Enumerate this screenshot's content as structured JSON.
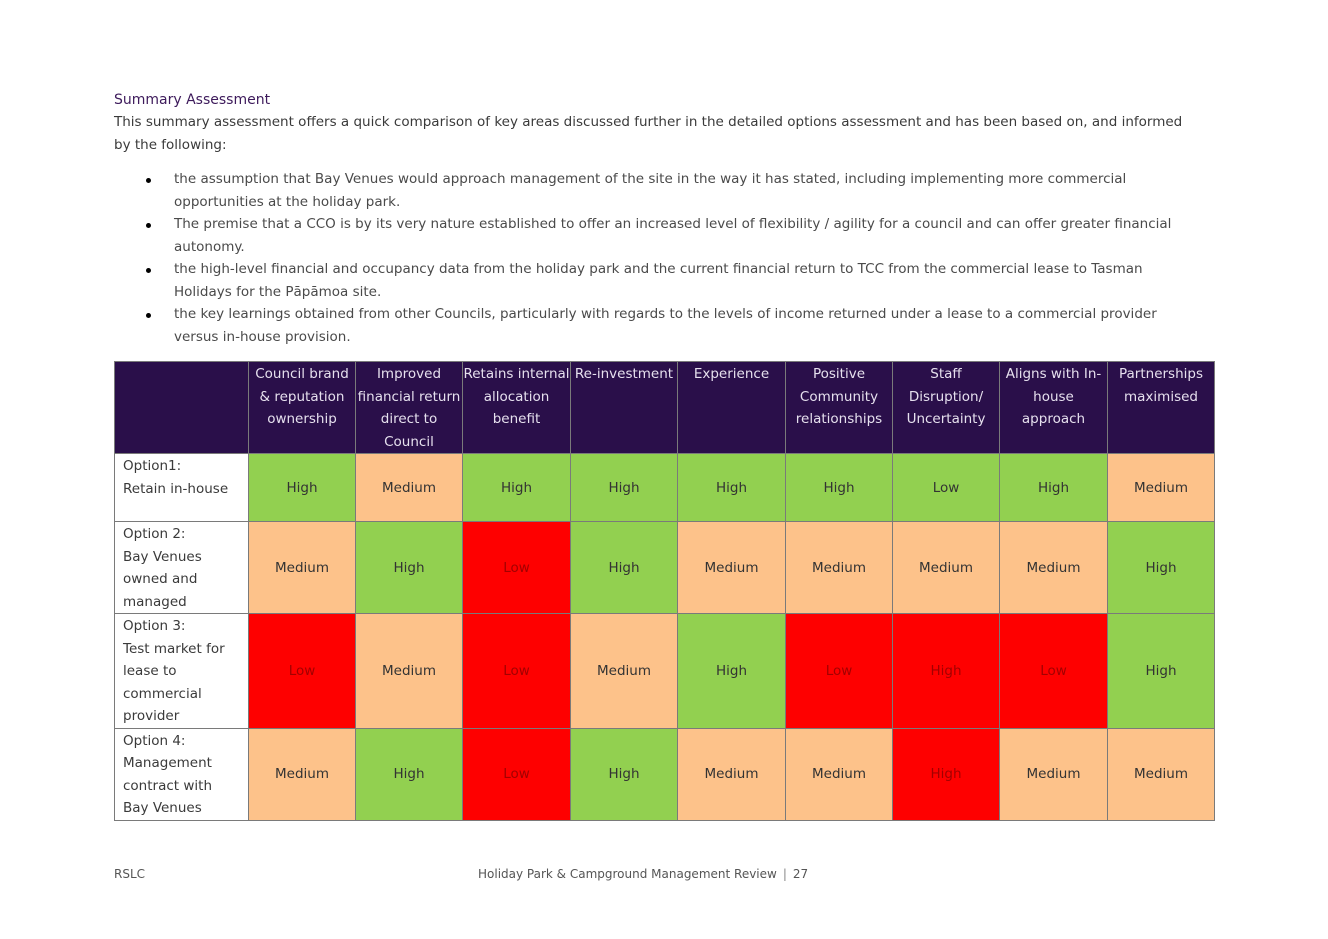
{
  "heading": "Summary Assessment",
  "intro": "This summary assessment offers a quick comparison of key areas discussed further in the detailed options assessment and has been based on, and informed by the following:",
  "bullets": [
    "the assumption that Bay Venues would approach management of the site in the way it has stated, including implementing more commercial opportunities at the holiday park.",
    "The premise that a CCO is by its very nature established to offer an increased level of flexibility / agility for a council and can offer greater financial autonomy.",
    "the high-level financial and occupancy data from the holiday park and the current financial return to TCC from the commercial lease to Tasman Holidays for the Pāpāmoa site.",
    "the key learnings obtained from other Councils, particularly with regards to the levels of income returned under a lease to a commercial provider versus in-house provision."
  ],
  "table": {
    "columns": [
      "Council brand & reputation ownership",
      "Improved financial return direct to Council",
      "Retains internal allocation benefit",
      "Re-investment",
      "Experience",
      "Positive Community relationships",
      "Staff Disruption/ Uncertainty",
      "Aligns with In-house approach",
      "Partnerships maximised"
    ],
    "rows": [
      {
        "label_line1": "Option1:",
        "label_rest": "Retain in-house",
        "cells": [
          "High",
          "Medium",
          "High",
          "High",
          "High",
          "High",
          "Low",
          "High",
          "Medium"
        ],
        "colors": [
          "#92d050",
          "#fdc28a",
          "#92d050",
          "#92d050",
          "#92d050",
          "#92d050",
          "#92d050",
          "#92d050",
          "#fdc28a"
        ]
      },
      {
        "label_line1": "Option 2:",
        "label_rest": "Bay Venues owned and managed",
        "cells": [
          "Medium",
          "High",
          "Low",
          "High",
          "Medium",
          "Medium",
          "Medium",
          "Medium",
          "High"
        ],
        "colors": [
          "#fdc28a",
          "#92d050",
          "#fe0000",
          "#92d050",
          "#fdc28a",
          "#fdc28a",
          "#fdc28a",
          "#fdc28a",
          "#92d050"
        ]
      },
      {
        "label_line1": "Option 3:",
        "label_rest": "Test market for lease to commercial provider",
        "cells": [
          "Low",
          "Medium",
          "Low",
          "Medium",
          "High",
          "Low",
          "High",
          "Low",
          "High"
        ],
        "colors": [
          "#fe0000",
          "#fdc28a",
          "#fe0000",
          "#fdc28a",
          "#92d050",
          "#fe0000",
          "#fe0000",
          "#fe0000",
          "#92d050"
        ]
      },
      {
        "label_line1": "Option 4:",
        "label_rest": "Management contract with Bay Venues",
        "cells": [
          "Medium",
          "High",
          "Low",
          "High",
          "Medium",
          "Medium",
          "High",
          "Medium",
          "Medium"
        ],
        "colors": [
          "#fdc28a",
          "#92d050",
          "#fe0000",
          "#92d050",
          "#fdc28a",
          "#fdc28a",
          "#fe0000",
          "#fdc28a",
          "#fdc28a"
        ]
      }
    ]
  },
  "footer": {
    "left": "RSLC",
    "title": "Holiday Park & Campground Management Review",
    "separator": "|",
    "page": "27"
  }
}
